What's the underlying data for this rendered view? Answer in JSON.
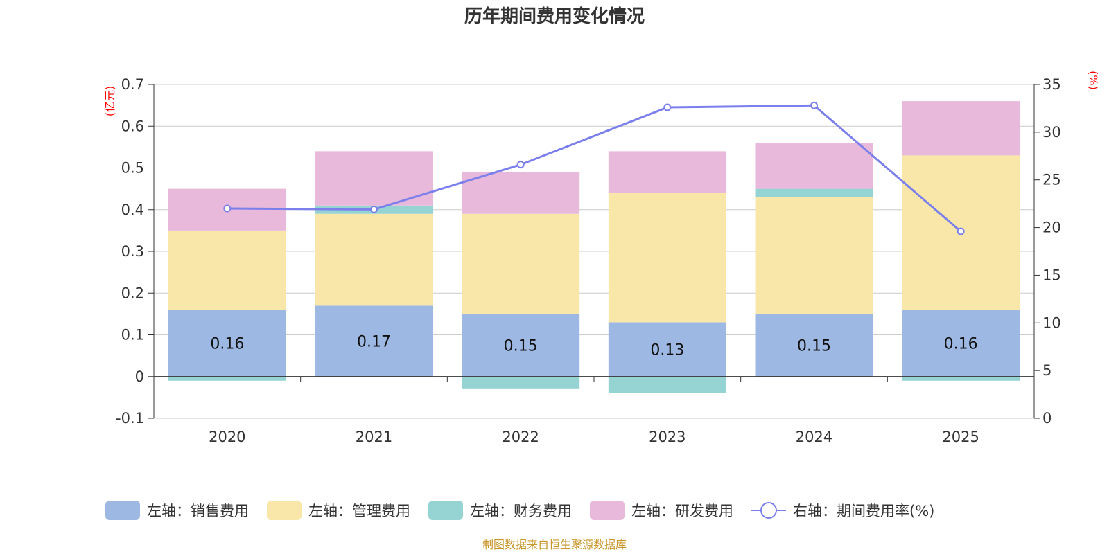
{
  "chart_data": {
    "type": "bar",
    "stacked": true,
    "title": "历年期间费用变化情况",
    "categories": [
      "2020",
      "2021",
      "2022",
      "2023",
      "2024",
      "2025"
    ],
    "left_axis": {
      "unit": "(亿元)",
      "ylim": [
        -0.1,
        0.7
      ],
      "ticks": [
        "-0.1",
        "0",
        "0.1",
        "0.2",
        "0.3",
        "0.4",
        "0.5",
        "0.6",
        "0.7"
      ],
      "tick_values": [
        -0.1,
        0,
        0.1,
        0.2,
        0.3,
        0.4,
        0.5,
        0.6,
        0.7
      ]
    },
    "right_axis": {
      "unit": "(%)",
      "ylim": [
        0,
        35
      ],
      "ticks": [
        "0",
        "5",
        "10",
        "15",
        "20",
        "25",
        "30",
        "35"
      ],
      "tick_values": [
        0,
        5,
        10,
        15,
        20,
        25,
        30,
        35
      ]
    },
    "series": [
      {
        "name": "左轴：销售费用",
        "axis": "left",
        "color": "#9db8e2",
        "values": [
          0.16,
          0.17,
          0.15,
          0.13,
          0.15,
          0.16
        ],
        "labels": [
          "0.16",
          "0.17",
          "0.15",
          "0.13",
          "0.15",
          "0.16"
        ]
      },
      {
        "name": "左轴：管理费用",
        "axis": "left",
        "color": "#f8e7a8",
        "values": [
          0.19,
          0.22,
          0.24,
          0.31,
          0.28,
          0.37
        ]
      },
      {
        "name": "左轴：财务费用",
        "axis": "left",
        "color": "#96d3d3",
        "values": [
          -0.01,
          0.02,
          -0.03,
          -0.04,
          0.02,
          -0.01
        ]
      },
      {
        "name": "左轴：研发费用",
        "axis": "left",
        "color": "#e8b9da",
        "values": [
          0.1,
          0.13,
          0.1,
          0.1,
          0.11,
          0.13
        ]
      },
      {
        "name": "右轴：期间费用率(%)",
        "axis": "right",
        "type": "line",
        "color": "#7b7fec",
        "values": [
          22.0,
          21.9,
          26.6,
          32.6,
          32.8,
          19.6
        ]
      }
    ]
  },
  "source": "制图数据来自恒生聚源数据库"
}
